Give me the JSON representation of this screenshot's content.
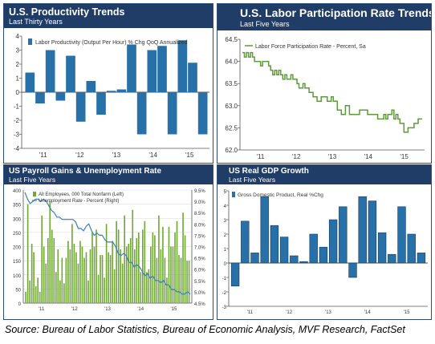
{
  "colors": {
    "header_bg": "#1f3d66",
    "bar_blue": "#2770a8",
    "green": "#5f9a3c",
    "bar_green": "#6fa832",
    "line_blue": "#3d7fb8"
  },
  "panels": {
    "p1": {
      "title": "U.S. Productivity Trends",
      "subtitle": "Last Thirty Years"
    },
    "p2": {
      "title": "U.S. Labor Participation Rate Trends",
      "subtitle": "Last Five Years"
    },
    "p3": {
      "title": "US Payroll Gains & Unemployment Rate",
      "subtitle": "Last Five Years"
    },
    "p4": {
      "title": "US Real GDP Growth",
      "subtitle": "Last Five Years"
    }
  },
  "source": "Source: Bureau of Labor Statistics, Bureau of Economic Analysis, MVF Research, FactSet",
  "chart_data": [
    {
      "type": "bar",
      "id": "p1",
      "legend": "Labor Productivity (Output Per Hour) % Chg QoQ Annualized",
      "ylim": [
        -4,
        4
      ],
      "yticks": [
        -4,
        -3,
        -2,
        -1,
        0,
        1,
        2,
        3,
        4
      ],
      "xticks": [
        "'11",
        "'12",
        "'13",
        "'14",
        "'15"
      ],
      "values": [
        1.4,
        -0.8,
        3.0,
        -0.6,
        2.6,
        -2.1,
        0.8,
        -1.6,
        0.1,
        0.2,
        3.4,
        -3.0,
        3.0,
        3.3,
        -3.0,
        3.7,
        2.1,
        -3.0
      ]
    },
    {
      "type": "line",
      "id": "p2",
      "legend": "Labor Force Participation Rate - Percent, Sa",
      "ylim": [
        62.0,
        64.5
      ],
      "yticks": [
        62.0,
        62.5,
        63.0,
        63.5,
        64.0,
        64.5
      ],
      "xticks": [
        "'11",
        "'12",
        "'13",
        "'14",
        "'15"
      ],
      "values": [
        64.2,
        64.1,
        64.2,
        64.1,
        64.2,
        64.1,
        64.0,
        64.0,
        64.0,
        63.9,
        64.0,
        64.0,
        64.0,
        63.9,
        63.8,
        63.7,
        63.8,
        63.7,
        63.8,
        63.7,
        63.6,
        63.7,
        63.6,
        63.6,
        63.7,
        63.6,
        63.6,
        63.5,
        63.4,
        63.4,
        63.5,
        63.4,
        63.4,
        63.3,
        63.3,
        63.2,
        63.2,
        63.1,
        63.1,
        63.2,
        63.2,
        63.2,
        63.1,
        63.1,
        63.2,
        63.1,
        63.1,
        62.9,
        62.9,
        62.8,
        62.8,
        63.0,
        63.0,
        62.8,
        62.8,
        62.8,
        62.8,
        62.8,
        62.9,
        62.9,
        62.9,
        62.9,
        62.8,
        62.8,
        62.8,
        62.8,
        62.8,
        62.7,
        62.7,
        62.7,
        62.8,
        62.7,
        62.8,
        62.8,
        62.9,
        62.7,
        62.8,
        62.7,
        62.6,
        62.6,
        62.4,
        62.4,
        62.5,
        62.5,
        62.5,
        62.6,
        62.6,
        62.7,
        62.7
      ]
    },
    {
      "type": "bar+line",
      "id": "p3",
      "legend_bars": "All Employees, 000 Total Nonfarm (Left)",
      "legend_line": "Unemployment Rate - Percent (Right)",
      "ylim_left": [
        0,
        400
      ],
      "yticks_left": [
        0,
        50,
        100,
        150,
        200,
        250,
        300,
        350,
        400
      ],
      "ylim_right": [
        4.5,
        9.5
      ],
      "yticks_right": [
        "4.5%",
        "5.0%",
        "5.5%",
        "6.0%",
        "6.5%",
        "7.0%",
        "7.5%",
        "8.0%",
        "8.5%",
        "9.0%",
        "9.5%"
      ],
      "xticks": [
        "'11",
        "'12",
        "'13",
        "'14",
        "'15"
      ],
      "bars": [
        40,
        350,
        80,
        210,
        180,
        60,
        90,
        40,
        310,
        200,
        140,
        230,
        360,
        260,
        230,
        110,
        190,
        80,
        160,
        70,
        160,
        220,
        190,
        280,
        210,
        180,
        140,
        220,
        200,
        160,
        180,
        80,
        190,
        250,
        200,
        260,
        100,
        170,
        170,
        90,
        280,
        180,
        170,
        220,
        120,
        290,
        260,
        190,
        140,
        310,
        200,
        210,
        230,
        330,
        190,
        230,
        250,
        110,
        260,
        290,
        110,
        120,
        200,
        250,
        240,
        160,
        310,
        190,
        270,
        160,
        90,
        270,
        200,
        200,
        250,
        290,
        170,
        160,
        320,
        240,
        150,
        150
      ],
      "unemployment": [
        9.4,
        9.1,
        8.9,
        9.0,
        9.1,
        9.1,
        9.0,
        9.1,
        9.0,
        8.8,
        8.6,
        8.5,
        8.3,
        8.3,
        8.2,
        8.2,
        8.2,
        8.2,
        8.2,
        8.1,
        7.8,
        7.8,
        7.7,
        7.9,
        8.0,
        7.7,
        7.5,
        7.6,
        7.5,
        7.5,
        7.3,
        7.2,
        7.2,
        7.2,
        7.0,
        6.7,
        6.6,
        6.7,
        6.6,
        6.3,
        6.3,
        6.1,
        6.2,
        6.1,
        5.9,
        5.7,
        5.8,
        5.6,
        5.7,
        5.5,
        5.5,
        5.4,
        5.5,
        5.3,
        5.3,
        5.1,
        5.1,
        5.0,
        5.0,
        4.9,
        4.9,
        5.0,
        4.9
      ]
    },
    {
      "type": "bar",
      "id": "p4",
      "legend": "Gross Domestic Product, Real %Chg",
      "ylim": [
        -3,
        5
      ],
      "yticks": [
        -3,
        -2,
        -1,
        0,
        1,
        2,
        3,
        4,
        5
      ],
      "xticks": [
        "'11",
        "'12",
        "'13",
        "'14",
        "'15"
      ],
      "values": [
        -1.6,
        2.9,
        0.7,
        4.6,
        2.6,
        1.8,
        0.5,
        0.1,
        2.0,
        1.1,
        3.0,
        3.9,
        -1.0,
        4.6,
        4.3,
        2.1,
        0.6,
        3.9,
        2.0,
        0.7
      ]
    }
  ]
}
